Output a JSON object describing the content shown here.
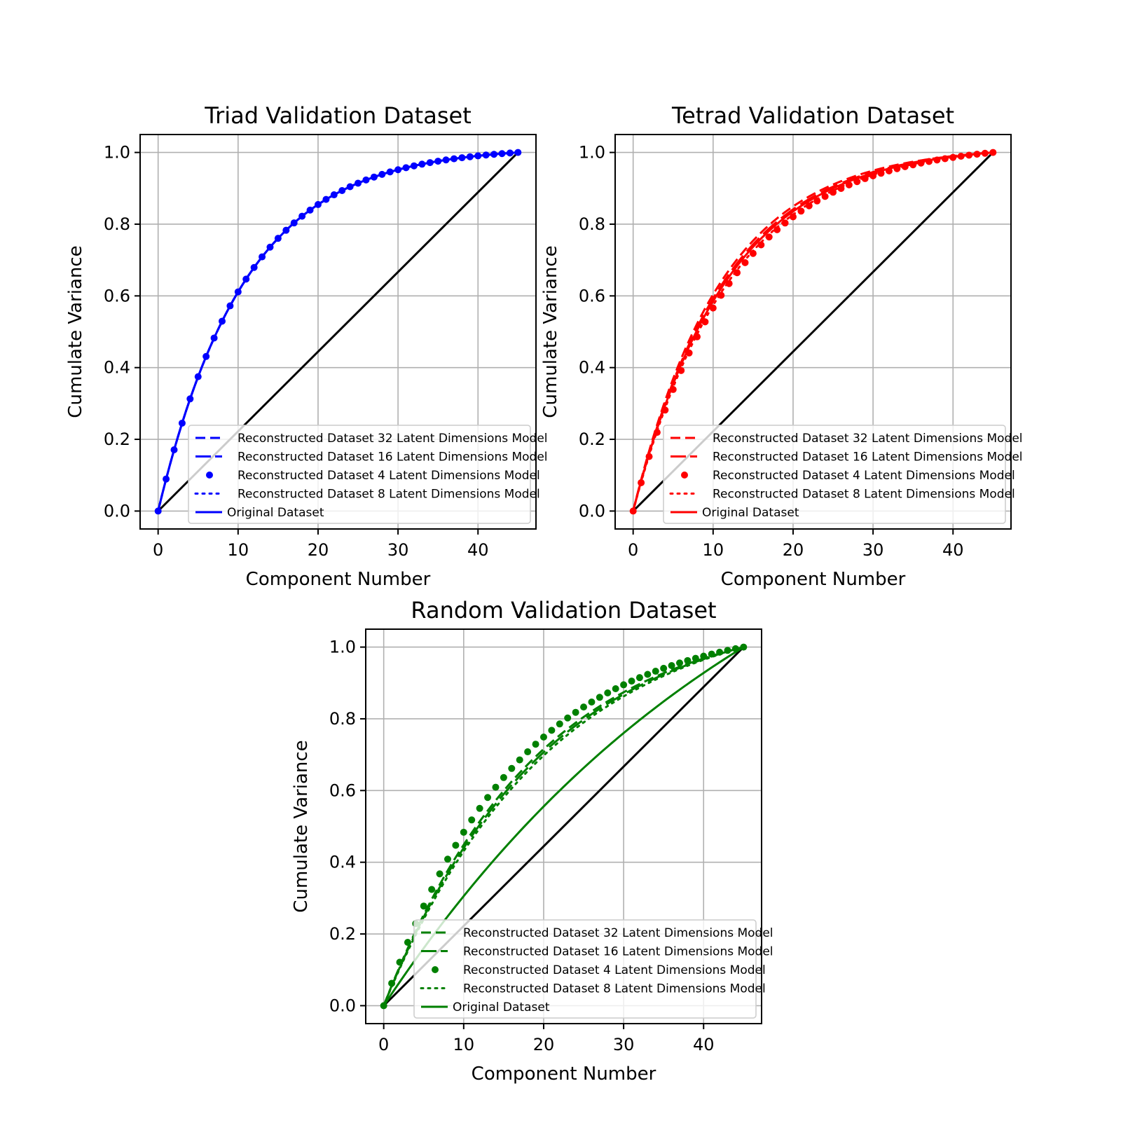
{
  "chart_data": [
    {
      "type": "line",
      "title": "Triad Validation Dataset",
      "xlabel": "Component Number",
      "ylabel": "Cumulate Variance",
      "xlim": [
        -2.25,
        47.25
      ],
      "ylim": [
        -0.05,
        1.05
      ],
      "xticks": [
        0,
        10,
        20,
        30,
        40
      ],
      "xtick_labels": [
        "0",
        "10",
        "20",
        "30",
        "40"
      ],
      "yticks": [
        0,
        0.2,
        0.4,
        0.6,
        0.8,
        1.0
      ],
      "ytick_labels": [
        "0.0",
        "0.2",
        "0.4",
        "0.6",
        "0.8",
        "1.0"
      ],
      "grid": true,
      "legend_position": "lower-right",
      "color": "#0000ff",
      "reference_line": {
        "x": [
          0,
          45
        ],
        "y": [
          0,
          1
        ],
        "color": "#000000"
      },
      "series": [
        {
          "name": "Reconstructed Dataset 32 Latent Dimensions Model",
          "style": "dashed",
          "k": 0.092,
          "n": 45
        },
        {
          "name": "Reconstructed Dataset 16 Latent Dimensions Model",
          "style": "longdash",
          "k": 0.092,
          "n": 45
        },
        {
          "name": "Reconstructed Dataset 4 Latent Dimensions Model",
          "style": "dots",
          "k": 0.092,
          "n": 45
        },
        {
          "name": "Reconstructed Dataset 8 Latent Dimensions Model",
          "style": "dotted",
          "k": 0.092,
          "n": 45
        },
        {
          "name": "Original Dataset",
          "style": "solid",
          "k": 0.092,
          "n": 45
        }
      ]
    },
    {
      "type": "line",
      "title": "Tetrad Validation Dataset",
      "xlabel": "Component Number",
      "ylabel": "Cumulate Variance",
      "xlim": [
        -2.25,
        47.25
      ],
      "ylim": [
        -0.05,
        1.05
      ],
      "xticks": [
        0,
        10,
        20,
        30,
        40
      ],
      "xtick_labels": [
        "0",
        "10",
        "20",
        "30",
        "40"
      ],
      "yticks": [
        0,
        0.2,
        0.4,
        0.6,
        0.8,
        1.0
      ],
      "ytick_labels": [
        "0.0",
        "0.2",
        "0.4",
        "0.6",
        "0.8",
        "1.0"
      ],
      "grid": true,
      "legend_position": "lower-right",
      "color": "#ff0000",
      "reference_line": {
        "x": [
          0,
          45
        ],
        "y": [
          0,
          1
        ],
        "color": "#000000"
      },
      "series": [
        {
          "name": "Reconstructed Dataset 32 Latent Dimensions Model",
          "style": "dashed",
          "k": 0.09,
          "n": 45
        },
        {
          "name": "Reconstructed Dataset 16 Latent Dimensions Model",
          "style": "longdash",
          "k": 0.087,
          "n": 45
        },
        {
          "name": "Reconstructed Dataset 4 Latent Dimensions Model",
          "style": "dots",
          "k": 0.08,
          "n": 45
        },
        {
          "name": "Reconstructed Dataset 8 Latent Dimensions Model",
          "style": "dotted",
          "k": 0.082,
          "n": 45
        },
        {
          "name": "Original Dataset",
          "style": "solid",
          "k": 0.085,
          "n": 45
        }
      ]
    },
    {
      "type": "line",
      "title": "Random Validation Dataset",
      "xlabel": "Component Number",
      "ylabel": "Cumulate Variance",
      "xlim": [
        -2.25,
        47.25
      ],
      "ylim": [
        -0.05,
        1.05
      ],
      "xticks": [
        0,
        10,
        20,
        30,
        40
      ],
      "xtick_labels": [
        "0",
        "10",
        "20",
        "30",
        "40"
      ],
      "yticks": [
        0,
        0.2,
        0.4,
        0.6,
        0.8,
        1.0
      ],
      "ytick_labels": [
        "0.0",
        "0.2",
        "0.4",
        "0.6",
        "0.8",
        "1.0"
      ],
      "grid": true,
      "legend_position": "lower-right",
      "color": "#008000",
      "reference_line": {
        "x": [
          0,
          45
        ],
        "y": [
          0,
          1
        ],
        "color": "#000000"
      },
      "series": [
        {
          "name": "Reconstructed Dataset 32 Latent Dimensions Model",
          "style": "dashed",
          "k": 0.052,
          "n": 45
        },
        {
          "name": "Reconstructed Dataset 16 Latent Dimensions Model",
          "style": "longdash",
          "k": 0.05,
          "n": 45
        },
        {
          "name": "Reconstructed Dataset 4 Latent Dimensions Model",
          "style": "dots",
          "k": 0.06,
          "n": 45
        },
        {
          "name": "Reconstructed Dataset 8 Latent Dimensions Model",
          "style": "dotted",
          "k": 0.048,
          "n": 45
        },
        {
          "name": "Original Dataset",
          "style": "solid",
          "k": 0.02,
          "n": 45
        }
      ]
    }
  ]
}
